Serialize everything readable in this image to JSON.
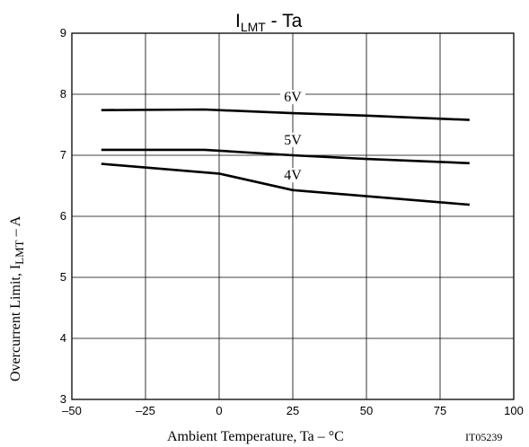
{
  "chart_data": {
    "type": "line",
    "title_main": "I",
    "title_sub": "LMT",
    "title_rest": " - Ta",
    "xlabel": "Ambient Temperature, Ta – °C",
    "ylabel": "Overcurrent Limit, I",
    "ylabel_sub": "LMT",
    "ylabel_rest": " – A",
    "code": "IT05239",
    "xlim": [
      -50,
      100
    ],
    "ylim": [
      3,
      9
    ],
    "xticks": [
      -50,
      -25,
      0,
      25,
      50,
      75,
      100
    ],
    "yticks": [
      3,
      4,
      5,
      6,
      7,
      8,
      9
    ],
    "grid": true,
    "series": [
      {
        "name": "6V",
        "x": [
          -40,
          -5,
          25,
          50,
          85
        ],
        "y": [
          7.74,
          7.75,
          7.69,
          7.65,
          7.58
        ],
        "label_x": 25,
        "label_y": 7.88
      },
      {
        "name": "5V",
        "x": [
          -40,
          -5,
          25,
          50,
          85
        ],
        "y": [
          7.09,
          7.09,
          7.0,
          6.94,
          6.87
        ],
        "label_x": 25,
        "label_y": 7.18
      },
      {
        "name": "4V",
        "x": [
          -40,
          0,
          25,
          50,
          85
        ],
        "y": [
          6.86,
          6.7,
          6.43,
          6.33,
          6.19
        ],
        "label_x": 25,
        "label_y": 6.6
      }
    ]
  }
}
